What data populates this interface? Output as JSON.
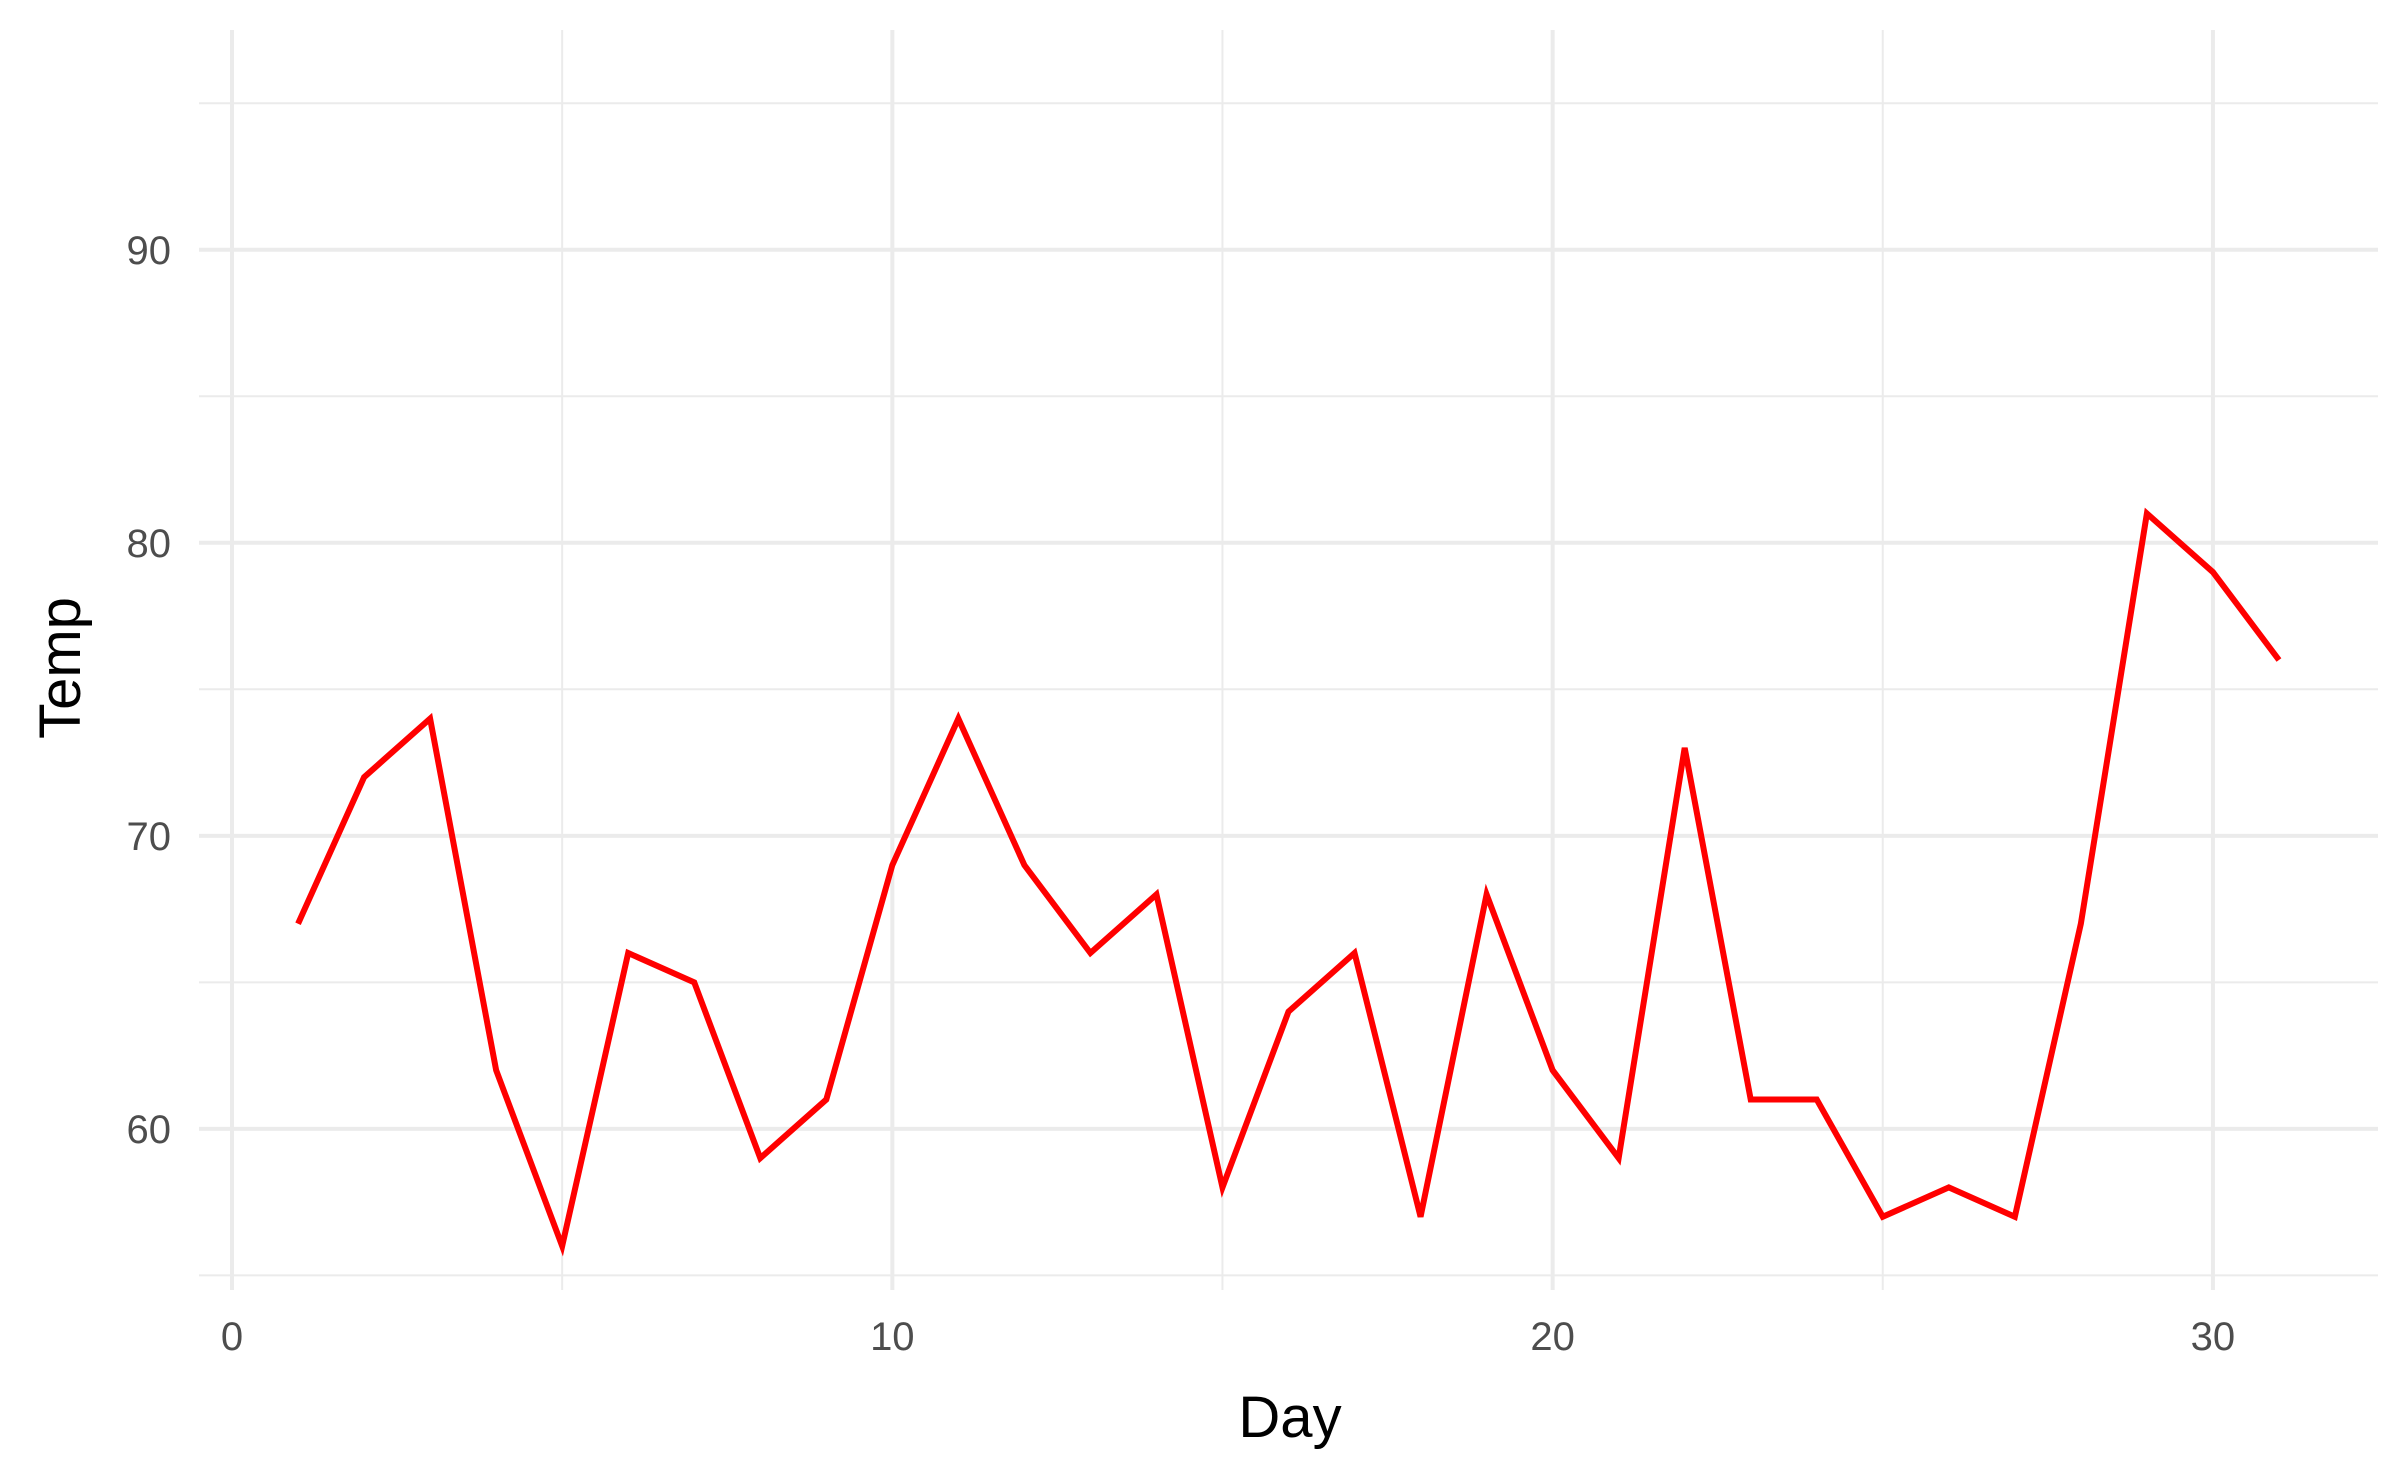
{
  "chart_data": {
    "type": "line",
    "xlabel": "Day",
    "ylabel": "Temp",
    "xlim": [
      -0.5,
      32.5
    ],
    "ylim": [
      54.5,
      97.5
    ],
    "x_ticks": [
      0,
      10,
      20,
      30
    ],
    "x_tick_labels": [
      "0",
      "10",
      "20",
      "30"
    ],
    "y_ticks": [
      60,
      70,
      80,
      90
    ],
    "y_tick_labels": [
      "60",
      "70",
      "80",
      "90"
    ],
    "x_minor_ticks": [
      5,
      15,
      25
    ],
    "y_minor_ticks": [
      55,
      65,
      75,
      85,
      95
    ],
    "grid": true,
    "legend": "none",
    "series": [
      {
        "color": "#ff0000",
        "x": [
          1,
          2,
          3,
          4,
          5,
          6,
          7,
          8,
          9,
          10,
          11,
          12,
          13,
          14,
          15,
          16,
          17,
          18,
          19,
          20,
          21,
          22,
          23,
          24,
          25,
          26,
          27,
          28,
          29,
          30,
          31
        ],
        "values": [
          67,
          72,
          74,
          62,
          56,
          66,
          65,
          59,
          61,
          69,
          74,
          69,
          66,
          68,
          58,
          64,
          66,
          57,
          68,
          62,
          59,
          73,
          61,
          61,
          57,
          58,
          57,
          67,
          81,
          79,
          76
        ]
      }
    ]
  },
  "colors": {
    "background": "#ffffff",
    "grid_major": "#ebebeb",
    "grid_minor": "#ebebeb",
    "tick_label": "#4d4d4d",
    "axis_title": "#000000"
  }
}
